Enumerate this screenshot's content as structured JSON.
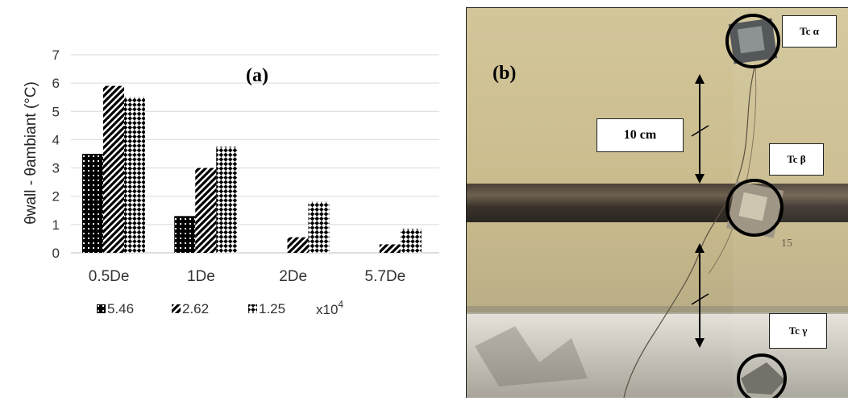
{
  "chart_data": {
    "type": "bar",
    "panel_label": "(a)",
    "ylabel": "θwall - θambiant (°C)",
    "ylim": [
      0,
      7
    ],
    "yticks": [
      "0",
      "1",
      "2",
      "3",
      "4",
      "5",
      "6",
      "7"
    ],
    "categories": [
      "0.5De",
      "1De",
      "2De",
      "5.7De"
    ],
    "grid": true,
    "legend_position": "bottom",
    "legend_suffix": "x10",
    "legend_suffix_exp": "4",
    "series": [
      {
        "name": "5.46",
        "values": [
          3.5,
          1.3,
          0,
          0
        ],
        "pattern": "dots-dark"
      },
      {
        "name": "2.62",
        "values": [
          5.9,
          3.0,
          0.55,
          0.3
        ],
        "pattern": "diagonal-stripes"
      },
      {
        "name": "1.25",
        "values": [
          5.5,
          3.75,
          1.8,
          0.85
        ],
        "pattern": "checker-diagonal"
      }
    ]
  },
  "photo": {
    "panel_label": "(b)",
    "distance_label": "10 cm",
    "tc_labels": [
      "Tc α",
      "Tc β",
      "Tc γ"
    ],
    "ink_mark": "15"
  }
}
